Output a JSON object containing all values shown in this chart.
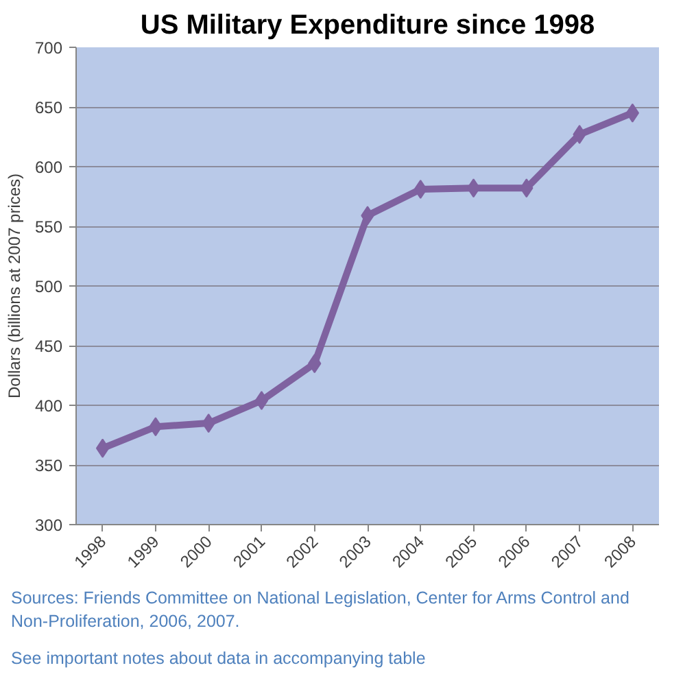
{
  "chart_data": {
    "type": "line",
    "title": "US Military Expenditure since 1998",
    "ylabel": "Dollars (billions at 2007 prices)",
    "categories": [
      "1998",
      "1999",
      "2000",
      "2001",
      "2002",
      "2003",
      "2004",
      "2005",
      "2006",
      "2007",
      "2008"
    ],
    "values": [
      364,
      382,
      385,
      404,
      435,
      559,
      581,
      582,
      582,
      627,
      645
    ],
    "color": "#7f62a0",
    "ylim": [
      300,
      700
    ],
    "yticks": [
      300,
      350,
      400,
      450,
      500,
      550,
      600,
      650,
      700
    ],
    "grid": "y",
    "marker": "diamond",
    "line_style": "solid",
    "annotations": [
      "Sources: Friends Committee on National Legislation, Center for Arms Control and Non-Proliferation, 2006, 2007.",
      "See important notes about data in accompanying table"
    ]
  }
}
